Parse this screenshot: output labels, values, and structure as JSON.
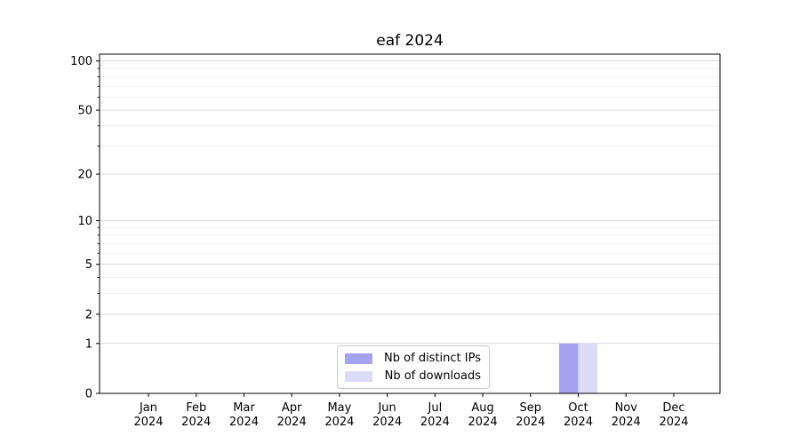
{
  "chart_data": {
    "type": "bar",
    "title": "eaf 2024",
    "xlabel": "",
    "ylabel": "",
    "categories": [
      "Jan",
      "Feb",
      "Mar",
      "Apr",
      "May",
      "Jun",
      "Jul",
      "Aug",
      "Sep",
      "Oct",
      "Nov",
      "Dec"
    ],
    "category_year": "2024",
    "series": [
      {
        "name": "Nb of distinct IPs",
        "color": "#a3a3f0",
        "values": [
          0,
          0,
          0,
          0,
          0,
          0,
          0,
          0,
          0,
          1,
          0,
          0
        ]
      },
      {
        "name": "Nb of downloads",
        "color": "#dcdcf8",
        "values": [
          0,
          0,
          0,
          0,
          0,
          0,
          0,
          0,
          0,
          1,
          0,
          0
        ]
      }
    ],
    "yscale": "log1p",
    "ylim": [
      0,
      110
    ],
    "ytick_values": [
      0,
      1,
      2,
      5,
      10,
      20,
      50,
      100
    ],
    "ytick_labels": [
      "0",
      "1",
      "2",
      "5",
      "10",
      "20",
      "50",
      "100"
    ],
    "minor_grid_values": [
      3,
      4,
      6,
      7,
      8,
      9,
      30,
      40,
      60,
      70,
      80,
      90
    ],
    "grid": true,
    "legend_position": "lower center",
    "colors": {
      "axis": "#000000",
      "major_grid": "#d9d9d9",
      "minor_grid": "#efefef",
      "legend_border": "#cccccc",
      "background": "#ffffff"
    }
  }
}
